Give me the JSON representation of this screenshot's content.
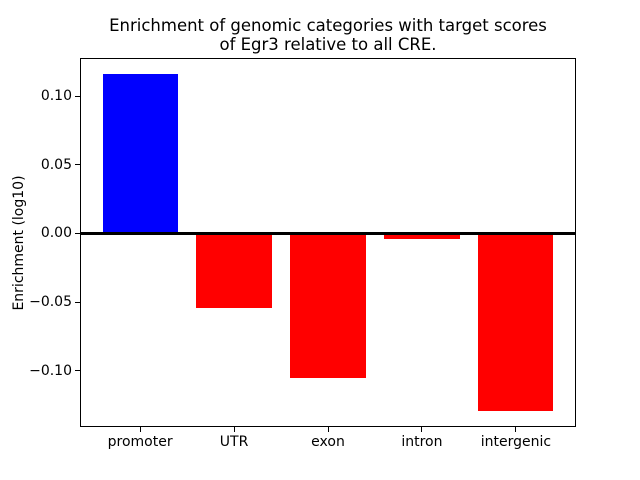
{
  "chart_data": {
    "type": "bar",
    "title": "Enrichment of genomic categories with target scores\nof Egr3 relative to all CRE.",
    "title_lines": [
      "Enrichment of genomic categories with target scores",
      "of Egr3 relative to all CRE."
    ],
    "xlabel": "",
    "ylabel": "Enrichment (log10)",
    "categories": [
      "promoter",
      "UTR",
      "exon",
      "intron",
      "intergenic"
    ],
    "values": [
      0.116,
      -0.054,
      -0.105,
      -0.004,
      -0.129
    ],
    "bar_colors": [
      "#0000ff",
      "#ff0000",
      "#ff0000",
      "#ff0000",
      "#ff0000"
    ],
    "positive_color": "#0000ff",
    "negative_color": "#ff0000",
    "yticks": [
      0.1,
      0.05,
      0.0,
      -0.05,
      -0.1
    ],
    "ytick_labels": [
      "0.10",
      "0.05",
      "0.00",
      "−0.05",
      "−0.10"
    ],
    "ylim": [
      -0.141,
      0.128
    ],
    "xlim": [
      -0.64,
      4.64
    ],
    "bar_width": 0.8,
    "zero_line": true,
    "grid": false,
    "legend": "none",
    "background_color": "#ffffff",
    "axis_color": "#000000"
  }
}
